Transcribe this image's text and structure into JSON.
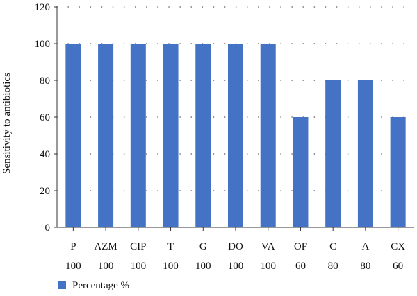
{
  "chart_data": {
    "type": "bar",
    "categories": [
      "P",
      "AZM",
      "CIP",
      "T",
      "G",
      "DO",
      "VA",
      "OF",
      "C",
      "A",
      "CX"
    ],
    "value_labels": [
      "100",
      "100",
      "100",
      "100",
      "100",
      "100",
      "100",
      "60",
      "80",
      "80",
      "60"
    ],
    "series": [
      {
        "name": "Percentage %",
        "values": [
          100,
          100,
          100,
          100,
          100,
          100,
          100,
          60,
          80,
          80,
          60
        ],
        "color": "#4472c4"
      }
    ],
    "title": "",
    "xlabel": "",
    "ylabel": "Sensitivity to antibiotics",
    "ylim": [
      0,
      120
    ],
    "yticks": [
      0,
      20,
      40,
      60,
      80,
      100,
      120
    ],
    "grid": "horizontal dotted",
    "legend_position": "bottom-left"
  }
}
